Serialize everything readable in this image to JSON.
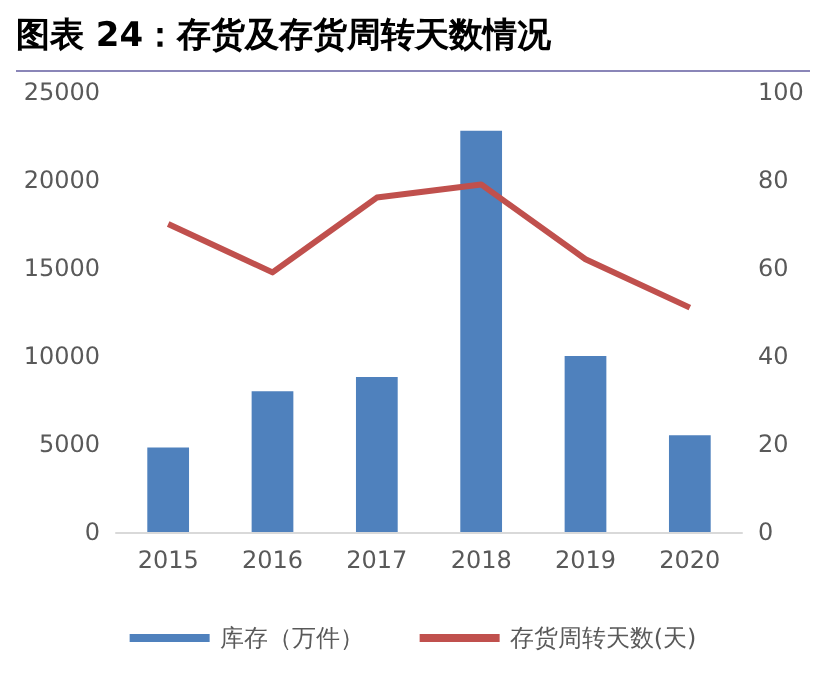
{
  "chart_data": {
    "type": "bar",
    "title": "图表 24：存货及存货周转天数情况",
    "categories": [
      "2015",
      "2016",
      "2017",
      "2018",
      "2019",
      "2020"
    ],
    "series": [
      {
        "name": "库存（万件）",
        "color": "#4f81bd",
        "values": [
          4800,
          8000,
          8800,
          22800,
          10000,
          5500
        ]
      },
      {
        "name": "存货周转天数(天)",
        "type": "line",
        "axis": "y2",
        "color": "#c0504d",
        "values": [
          70,
          59,
          76,
          79,
          62,
          51
        ]
      }
    ],
    "ylim": [
      0,
      25000
    ],
    "yticks": [
      0,
      5000,
      10000,
      15000,
      20000,
      25000
    ],
    "y2lim": [
      0,
      100
    ],
    "y2ticks": [
      0,
      20,
      40,
      60,
      80,
      100
    ],
    "grid": false,
    "legend": "bottom",
    "marker": "none",
    "line_style": "solid"
  }
}
